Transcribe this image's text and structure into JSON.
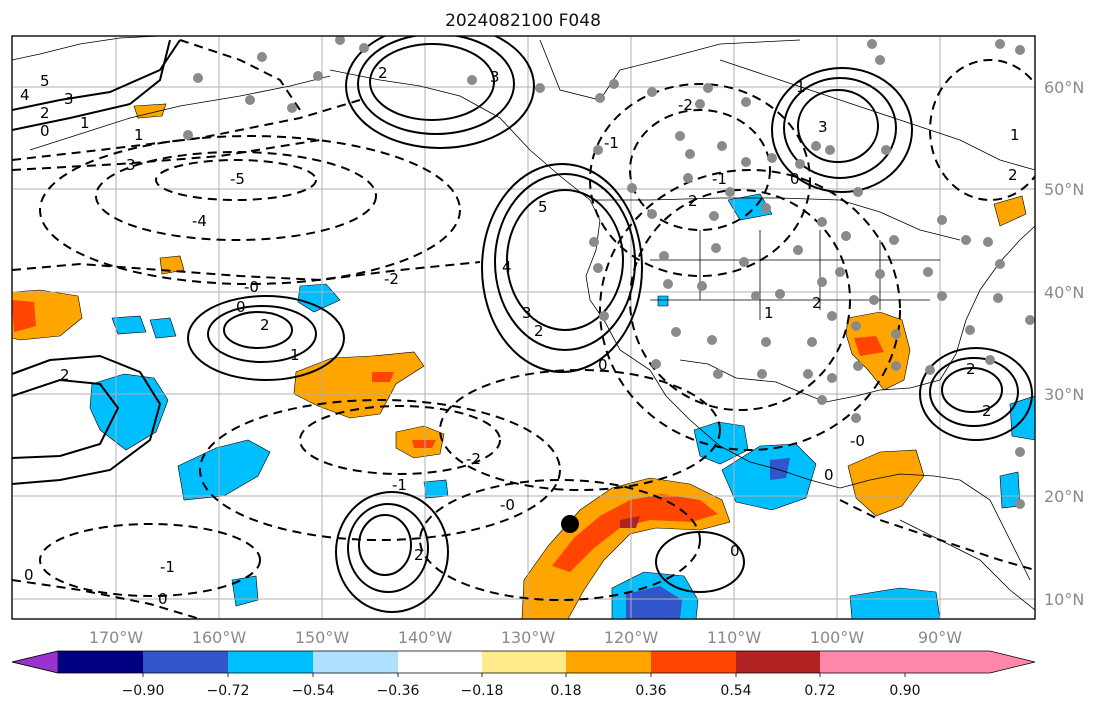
{
  "title": "2024082100 F048",
  "map": {
    "lon_labels": [
      "170°W",
      "160°W",
      "150°W",
      "140°W",
      "130°W",
      "120°W",
      "110°W",
      "100°W",
      "90°W"
    ],
    "lat_labels": [
      "60°N",
      "50°N",
      "40°N",
      "30°N",
      "20°N",
      "10°N"
    ],
    "marker": "cyclone-center-dot"
  },
  "colorbar": {
    "ticks": [
      "−0.90",
      "−0.72",
      "−0.54",
      "−0.36",
      "−0.18",
      "0.18",
      "0.36",
      "0.54",
      "0.72",
      "0.90"
    ],
    "colors": [
      "#9933cc",
      "#000080",
      "#3355cc",
      "#00bfff",
      "#b0e0ff",
      "#ffffff",
      "#ffeb8a",
      "#ffa500",
      "#ff4500",
      "#b22222",
      "#ff88aa"
    ]
  },
  "contour_labels": [
    "5",
    "3",
    "4",
    "2",
    "1",
    "0",
    "1",
    "3",
    "-5",
    "-4",
    "-2",
    "0",
    "-0",
    "2",
    "1",
    "2",
    "2",
    "3",
    "5",
    "4",
    "3",
    "2",
    "0",
    "-1",
    "-2",
    "1",
    "-1",
    "0",
    "2",
    "3",
    "2",
    "1",
    "-1",
    "0",
    "2",
    "-2",
    "-0",
    "-1",
    "0",
    "2",
    "2",
    "2",
    "1",
    "0",
    "0",
    "-0"
  ]
}
